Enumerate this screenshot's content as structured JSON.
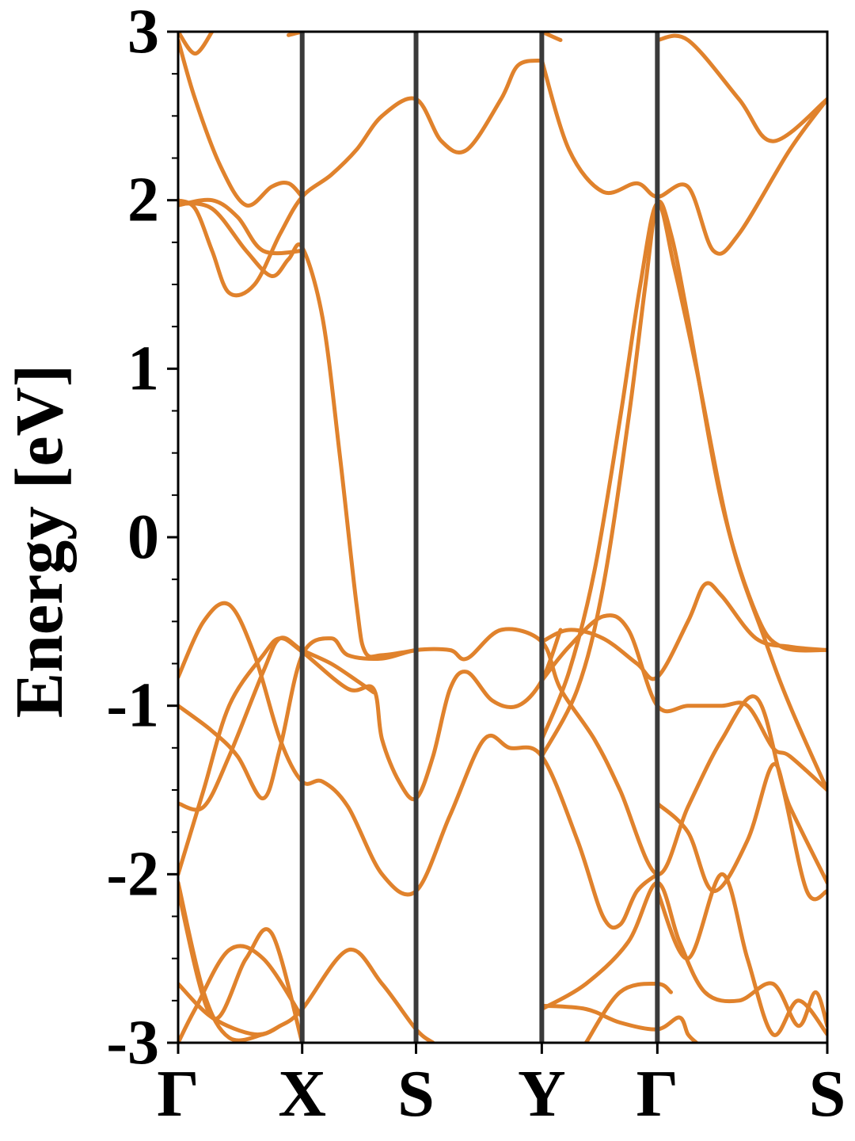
{
  "chart_data": {
    "type": "line",
    "title": "",
    "xlabel": "",
    "ylabel": "Energy [eV]",
    "ylim": [
      -3,
      3
    ],
    "yticks": [
      -3,
      -2,
      -1,
      0,
      1,
      2,
      3
    ],
    "ytick_labels": [
      "-3",
      "-2",
      "-1",
      "0",
      "1",
      "2",
      "3"
    ],
    "kpoints": [
      {
        "label": "Γ",
        "x": 0
      },
      {
        "label": "X",
        "x": 0.73
      },
      {
        "label": "S",
        "x": 1.4
      },
      {
        "label": "Y",
        "x": 2.14
      },
      {
        "label": "Γ",
        "x": 2.82
      },
      {
        "label": "S",
        "x": 3.82
      }
    ],
    "grid": false,
    "band_color": "#e0822c",
    "kpath_line_color": "#3a3a3a",
    "series": [
      {
        "points": [
          [
            0,
            -3.0
          ],
          [
            0.1,
            -2.8
          ],
          [
            0.3,
            -2.45
          ],
          [
            0.5,
            -2.5
          ],
          [
            0.73,
            -2.85
          ]
        ]
      },
      {
        "points": [
          [
            0,
            -2.05
          ],
          [
            0.15,
            -2.7
          ],
          [
            0.3,
            -2.97
          ],
          [
            0.5,
            -2.95
          ],
          [
            0.6,
            -2.9
          ]
        ]
      },
      {
        "points": [
          [
            0,
            -2.1
          ],
          [
            0.2,
            -2.85
          ],
          [
            0.4,
            -2.5
          ],
          [
            0.55,
            -2.35
          ],
          [
            0.73,
            -3.0
          ]
        ]
      },
      {
        "points": [
          [
            0,
            -2.65
          ],
          [
            0.2,
            -2.85
          ],
          [
            0.45,
            -2.95
          ],
          [
            0.6,
            -2.9
          ],
          [
            0.73,
            -2.8
          ],
          [
            1.0,
            -2.45
          ],
          [
            1.2,
            -2.65
          ],
          [
            1.4,
            -2.92
          ],
          [
            1.5,
            -3.0
          ]
        ]
      },
      {
        "points": [
          [
            0,
            -2.0
          ],
          [
            0.15,
            -1.5
          ],
          [
            0.3,
            -1.0
          ],
          [
            0.5,
            -0.7
          ],
          [
            0.6,
            -0.6
          ],
          [
            0.73,
            -0.68
          ],
          [
            1.0,
            -0.9
          ],
          [
            1.15,
            -0.9
          ],
          [
            1.2,
            -1.2
          ],
          [
            1.3,
            -1.45
          ],
          [
            1.4,
            -1.55
          ],
          [
            1.5,
            -1.3
          ],
          [
            1.6,
            -0.9
          ],
          [
            1.7,
            -0.8
          ],
          [
            1.85,
            -0.97
          ],
          [
            2.0,
            -1.0
          ],
          [
            2.14,
            -0.85
          ],
          [
            2.25,
            -0.55
          ]
        ]
      },
      {
        "points": [
          [
            0,
            -0.83
          ],
          [
            0.15,
            -0.5
          ],
          [
            0.3,
            -0.4
          ],
          [
            0.45,
            -0.7
          ],
          [
            0.6,
            -1.2
          ],
          [
            0.73,
            -1.45
          ],
          [
            0.85,
            -1.45
          ],
          [
            1.0,
            -1.6
          ],
          [
            1.2,
            -2.0
          ],
          [
            1.4,
            -2.1
          ],
          [
            1.6,
            -1.65
          ],
          [
            1.8,
            -1.2
          ],
          [
            1.95,
            -1.25
          ],
          [
            2.14,
            -1.3
          ],
          [
            2.35,
            -1.8
          ],
          [
            2.5,
            -2.25
          ],
          [
            2.6,
            -2.3
          ],
          [
            2.7,
            -2.1
          ],
          [
            2.82,
            -2.0
          ]
        ]
      },
      {
        "points": [
          [
            0,
            -1.0
          ],
          [
            0.2,
            -1.15
          ],
          [
            0.35,
            -1.3
          ],
          [
            0.5,
            -1.55
          ],
          [
            0.6,
            -1.25
          ],
          [
            0.73,
            -0.7
          ],
          [
            0.9,
            -0.6
          ],
          [
            1.0,
            -0.7
          ],
          [
            1.2,
            -0.72
          ],
          [
            1.4,
            -0.67
          ],
          [
            1.6,
            -0.67
          ],
          [
            1.7,
            -0.72
          ],
          [
            1.9,
            -0.55
          ],
          [
            2.14,
            -0.62
          ],
          [
            2.25,
            -0.9
          ],
          [
            2.45,
            -1.2
          ],
          [
            2.6,
            -1.5
          ],
          [
            2.82,
            -2.0
          ],
          [
            3.0,
            -1.6
          ],
          [
            3.2,
            -1.2
          ],
          [
            3.4,
            -0.95
          ],
          [
            3.55,
            -1.45
          ],
          [
            3.7,
            -2.1
          ],
          [
            3.82,
            -2.1
          ]
        ]
      },
      {
        "points": [
          [
            0,
            -1.58
          ],
          [
            0.15,
            -1.6
          ],
          [
            0.3,
            -1.3
          ],
          [
            0.5,
            -0.8
          ],
          [
            0.6,
            -0.6
          ],
          [
            0.73,
            -0.67
          ],
          [
            0.9,
            -0.75
          ],
          [
            1.05,
            -0.85
          ],
          [
            1.15,
            -0.92
          ]
        ]
      },
      {
        "points": [
          [
            2.14,
            -0.62
          ],
          [
            2.3,
            -0.55
          ],
          [
            2.5,
            -0.6
          ],
          [
            2.7,
            -0.75
          ],
          [
            2.82,
            -0.83
          ],
          [
            3.0,
            -0.5
          ],
          [
            3.1,
            -0.28
          ],
          [
            3.2,
            -0.35
          ],
          [
            3.4,
            -0.6
          ],
          [
            3.6,
            -0.65
          ],
          [
            3.82,
            -0.67
          ]
        ]
      },
      {
        "points": [
          [
            2.14,
            -0.85
          ],
          [
            2.3,
            -0.65
          ],
          [
            2.5,
            -0.47
          ],
          [
            2.65,
            -0.55
          ],
          [
            2.82,
            -1.0
          ],
          [
            3.0,
            -1.0
          ],
          [
            3.2,
            -1.0
          ],
          [
            3.35,
            -1.0
          ],
          [
            3.5,
            -1.25
          ],
          [
            3.6,
            -1.3
          ],
          [
            3.82,
            -1.5
          ]
        ]
      },
      {
        "points": [
          [
            2.14,
            -1.3
          ],
          [
            2.35,
            -0.9
          ],
          [
            2.5,
            -0.3
          ],
          [
            2.65,
            0.7
          ],
          [
            2.75,
            1.5
          ],
          [
            2.82,
            1.98
          ],
          [
            2.9,
            1.8
          ],
          [
            3.0,
            1.3
          ],
          [
            3.2,
            0.2
          ],
          [
            3.4,
            -0.45
          ],
          [
            3.55,
            -0.65
          ],
          [
            3.82,
            -0.67
          ]
        ]
      },
      {
        "points": [
          [
            2.14,
            -1.2
          ],
          [
            2.3,
            -0.8
          ],
          [
            2.45,
            -0.2
          ],
          [
            2.6,
            0.7
          ],
          [
            2.72,
            1.5
          ],
          [
            2.82,
            1.98
          ],
          [
            2.92,
            1.6
          ],
          [
            3.05,
            1.0
          ],
          [
            3.25,
            0.0
          ],
          [
            3.45,
            -0.6
          ],
          [
            3.6,
            -1.0
          ],
          [
            3.82,
            -1.5
          ]
        ]
      },
      {
        "points": [
          [
            0,
            1.98
          ],
          [
            0.2,
            1.95
          ],
          [
            0.4,
            1.7
          ],
          [
            0.55,
            1.55
          ],
          [
            0.65,
            1.65
          ],
          [
            0.73,
            1.72
          ],
          [
            0.85,
            1.3
          ],
          [
            0.95,
            0.5
          ],
          [
            1.05,
            -0.4
          ],
          [
            1.1,
            -0.68
          ],
          [
            1.2,
            -0.7
          ],
          [
            1.4,
            -0.67
          ]
        ]
      },
      {
        "points": [
          [
            0,
            1.97
          ],
          [
            0.2,
            2.0
          ],
          [
            0.35,
            1.9
          ],
          [
            0.5,
            1.7
          ],
          [
            0.73,
            1.7
          ]
        ]
      },
      {
        "points": [
          [
            0,
            2.0
          ],
          [
            0.1,
            1.95
          ],
          [
            0.2,
            1.7
          ],
          [
            0.3,
            1.45
          ],
          [
            0.45,
            1.5
          ],
          [
            0.6,
            1.8
          ],
          [
            0.73,
            2.02
          ],
          [
            0.9,
            2.15
          ],
          [
            1.05,
            2.3
          ],
          [
            1.2,
            2.5
          ],
          [
            1.4,
            2.6
          ],
          [
            1.55,
            2.35
          ],
          [
            1.7,
            2.3
          ],
          [
            1.9,
            2.6
          ],
          [
            2.0,
            2.8
          ],
          [
            2.14,
            2.83
          ]
        ]
      },
      {
        "points": [
          [
            0,
            2.95
          ],
          [
            0.1,
            2.6
          ],
          [
            0.25,
            2.2
          ],
          [
            0.4,
            1.97
          ],
          [
            0.55,
            2.08
          ],
          [
            0.65,
            2.1
          ],
          [
            0.73,
            2.02
          ]
        ]
      },
      {
        "points": [
          [
            0,
            3.0
          ],
          [
            0.1,
            2.87
          ],
          [
            0.2,
            3.0
          ]
        ]
      },
      {
        "points": [
          [
            0.65,
            2.98
          ],
          [
            0.73,
            3.0
          ]
        ]
      },
      {
        "points": [
          [
            2.14,
            2.83
          ],
          [
            2.3,
            2.3
          ],
          [
            2.5,
            2.05
          ],
          [
            2.7,
            2.1
          ],
          [
            2.82,
            2.02
          ],
          [
            3.0,
            2.08
          ],
          [
            3.15,
            1.7
          ],
          [
            3.3,
            1.8
          ],
          [
            3.6,
            2.3
          ],
          [
            3.82,
            2.6
          ]
        ]
      },
      {
        "points": [
          [
            2.14,
            3.0
          ],
          [
            2.25,
            2.95
          ]
        ]
      },
      {
        "points": [
          [
            2.82,
            2.95
          ],
          [
            3.0,
            2.95
          ],
          [
            3.3,
            2.6
          ],
          [
            3.5,
            2.35
          ],
          [
            3.82,
            2.6
          ]
        ]
      },
      {
        "points": [
          [
            2.14,
            -2.78
          ],
          [
            2.4,
            -2.8
          ],
          [
            2.6,
            -2.88
          ],
          [
            2.82,
            -2.92
          ],
          [
            2.95,
            -2.85
          ],
          [
            3.0,
            -2.95
          ],
          [
            3.05,
            -3.0
          ]
        ]
      },
      {
        "points": [
          [
            2.14,
            -2.8
          ],
          [
            2.4,
            -2.65
          ],
          [
            2.65,
            -2.4
          ],
          [
            2.82,
            -2.05
          ],
          [
            2.95,
            -2.4
          ],
          [
            3.1,
            -2.7
          ],
          [
            3.3,
            -2.75
          ],
          [
            3.5,
            -2.65
          ],
          [
            3.65,
            -2.9
          ],
          [
            3.75,
            -2.7
          ],
          [
            3.82,
            -2.9
          ]
        ]
      },
      {
        "points": [
          [
            2.82,
            -2.1
          ],
          [
            3.0,
            -2.5
          ],
          [
            3.2,
            -2.0
          ],
          [
            3.35,
            -2.5
          ],
          [
            3.5,
            -2.95
          ],
          [
            3.65,
            -2.75
          ],
          [
            3.82,
            -2.95
          ]
        ]
      },
      {
        "points": [
          [
            2.82,
            -1.58
          ],
          [
            3.0,
            -1.75
          ],
          [
            3.15,
            -2.1
          ],
          [
            3.35,
            -1.8
          ],
          [
            3.5,
            -1.35
          ],
          [
            3.6,
            -1.6
          ],
          [
            3.82,
            -2.05
          ]
        ]
      },
      {
        "points": [
          [
            2.4,
            -3.0
          ],
          [
            2.6,
            -2.7
          ],
          [
            2.82,
            -2.65
          ],
          [
            2.9,
            -2.7
          ]
        ]
      }
    ]
  }
}
